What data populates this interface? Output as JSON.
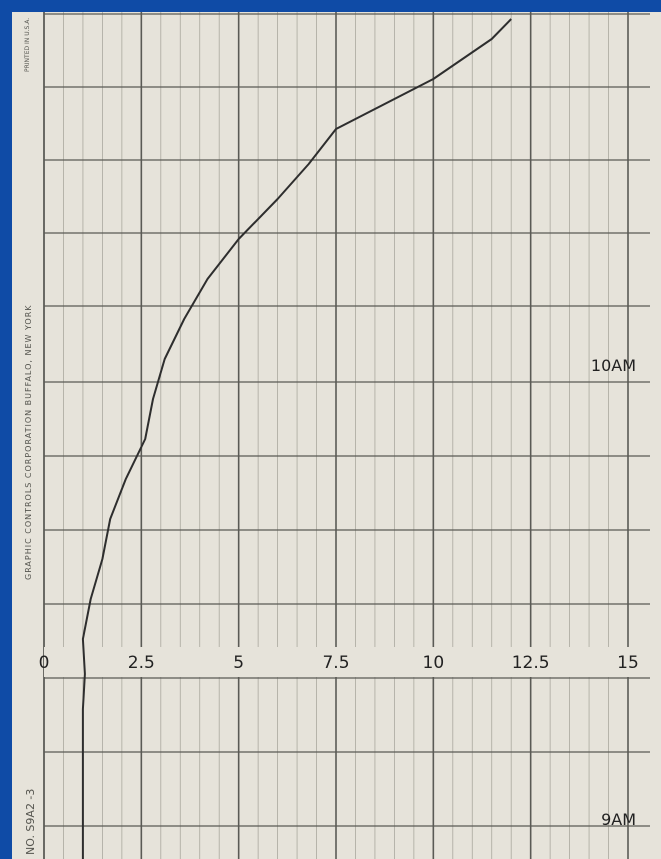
{
  "side_labels": {
    "company": "GRAPHIC CONTROLS CORPORATION   BUFFALO, NEW YORK",
    "chart_number": "NO. S9A2 -3",
    "printed": "PRINTED IN U.S.A."
  },
  "chart_data": {
    "type": "line",
    "x_ticks": [
      0,
      2.5,
      5,
      7.5,
      10,
      12.5,
      15
    ],
    "x_tick_labels": [
      "0",
      "2.5",
      "5",
      "7.5",
      "10",
      "12.5",
      "15"
    ],
    "xlim": [
      0,
      15
    ],
    "time_labels": [
      "10AM",
      "9AM"
    ],
    "grid": true,
    "series": [
      {
        "x": [
          1.0,
          1.0,
          1.0,
          1.0,
          1.05,
          1.0,
          1.2,
          1.5,
          1.7,
          2.1,
          2.6,
          2.8,
          3.1,
          3.6,
          4.2,
          5.0,
          6.0,
          6.8,
          7.5,
          8.5,
          10.0,
          11.5,
          12.0
        ],
        "y": [
          0,
          10,
          20,
          30,
          37,
          44,
          52,
          60,
          68,
          76,
          84,
          92,
          100,
          108,
          116,
          124,
          132,
          139,
          146,
          150,
          156,
          164,
          168
        ]
      }
    ]
  },
  "colors": {
    "frame": "#0f4ba6",
    "paper": "#e6e3da",
    "trace": "#2e2e2e",
    "grid_major": "#5a5a55",
    "grid_minor": "#aaa89f"
  }
}
